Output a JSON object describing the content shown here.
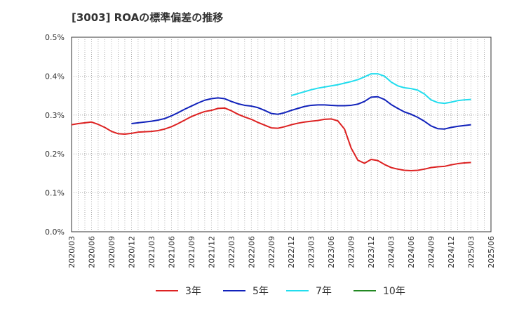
{
  "chart_data": {
    "type": "line",
    "title": "[3003]  ROAの標準偏差の推移",
    "xlabel": "",
    "ylabel": "",
    "ylim": [
      0,
      0.5
    ],
    "yticks": [
      "0.0%",
      "0.1%",
      "0.2%",
      "0.3%",
      "0.4%",
      "0.5%"
    ],
    "x_ticks": [
      "2020/03",
      "2020/06",
      "2020/09",
      "2020/12",
      "2021/03",
      "2021/06",
      "2021/09",
      "2021/12",
      "2022/03",
      "2022/06",
      "2022/09",
      "2022/12",
      "2023/03",
      "2023/06",
      "2023/09",
      "2023/12",
      "2024/03",
      "2024/06",
      "2024/09",
      "2024/12",
      "2025/03",
      "2025/06"
    ],
    "grid": true,
    "legend_position": "bottom",
    "series": [
      {
        "name": "3年",
        "color": "#dd2222",
        "values": [
          [
            "2020/03",
            0.275
          ],
          [
            "2020/04",
            0.278
          ],
          [
            "2020/05",
            0.28
          ],
          [
            "2020/06",
            0.282
          ],
          [
            "2020/07",
            0.276
          ],
          [
            "2020/08",
            0.268
          ],
          [
            "2020/09",
            0.258
          ],
          [
            "2020/10",
            0.252
          ],
          [
            "2020/11",
            0.251
          ],
          [
            "2020/12",
            0.253
          ],
          [
            "2021/01",
            0.256
          ],
          [
            "2021/02",
            0.257
          ],
          [
            "2021/03",
            0.258
          ],
          [
            "2021/04",
            0.26
          ],
          [
            "2021/05",
            0.264
          ],
          [
            "2021/06",
            0.27
          ],
          [
            "2021/07",
            0.278
          ],
          [
            "2021/08",
            0.287
          ],
          [
            "2021/09",
            0.296
          ],
          [
            "2021/10",
            0.303
          ],
          [
            "2021/11",
            0.309
          ],
          [
            "2021/12",
            0.312
          ],
          [
            "2022/01",
            0.317
          ],
          [
            "2022/02",
            0.318
          ],
          [
            "2022/03",
            0.311
          ],
          [
            "2022/04",
            0.302
          ],
          [
            "2022/05",
            0.295
          ],
          [
            "2022/06",
            0.289
          ],
          [
            "2022/07",
            0.281
          ],
          [
            "2022/08",
            0.274
          ],
          [
            "2022/09",
            0.267
          ],
          [
            "2022/10",
            0.266
          ],
          [
            "2022/11",
            0.27
          ],
          [
            "2022/12",
            0.275
          ],
          [
            "2023/01",
            0.279
          ],
          [
            "2023/02",
            0.282
          ],
          [
            "2023/03",
            0.284
          ],
          [
            "2023/04",
            0.286
          ],
          [
            "2023/05",
            0.289
          ],
          [
            "2023/06",
            0.29
          ],
          [
            "2023/07",
            0.285
          ],
          [
            "2023/08",
            0.264
          ],
          [
            "2023/09",
            0.215
          ],
          [
            "2023/10",
            0.184
          ],
          [
            "2023/11",
            0.176
          ],
          [
            "2023/12",
            0.186
          ],
          [
            "2024/01",
            0.183
          ],
          [
            "2024/02",
            0.173
          ],
          [
            "2024/03",
            0.165
          ],
          [
            "2024/04",
            0.161
          ],
          [
            "2024/05",
            0.158
          ],
          [
            "2024/06",
            0.157
          ],
          [
            "2024/07",
            0.158
          ],
          [
            "2024/08",
            0.161
          ],
          [
            "2024/09",
            0.165
          ],
          [
            "2024/10",
            0.167
          ],
          [
            "2024/11",
            0.168
          ],
          [
            "2024/12",
            0.172
          ],
          [
            "2025/01",
            0.175
          ],
          [
            "2025/02",
            0.177
          ],
          [
            "2025/03",
            0.178
          ]
        ]
      },
      {
        "name": "5年",
        "color": "#1122bb",
        "values": [
          [
            "2020/12",
            0.278
          ],
          [
            "2021/01",
            0.28
          ],
          [
            "2021/02",
            0.282
          ],
          [
            "2021/03",
            0.284
          ],
          [
            "2021/04",
            0.287
          ],
          [
            "2021/05",
            0.291
          ],
          [
            "2021/06",
            0.298
          ],
          [
            "2021/07",
            0.306
          ],
          [
            "2021/08",
            0.315
          ],
          [
            "2021/09",
            0.323
          ],
          [
            "2021/10",
            0.331
          ],
          [
            "2021/11",
            0.338
          ],
          [
            "2021/12",
            0.342
          ],
          [
            "2022/01",
            0.344
          ],
          [
            "2022/02",
            0.342
          ],
          [
            "2022/03",
            0.335
          ],
          [
            "2022/04",
            0.329
          ],
          [
            "2022/05",
            0.325
          ],
          [
            "2022/06",
            0.323
          ],
          [
            "2022/07",
            0.319
          ],
          [
            "2022/08",
            0.312
          ],
          [
            "2022/09",
            0.304
          ],
          [
            "2022/10",
            0.302
          ],
          [
            "2022/11",
            0.306
          ],
          [
            "2022/12",
            0.312
          ],
          [
            "2023/01",
            0.317
          ],
          [
            "2023/02",
            0.322
          ],
          [
            "2023/03",
            0.325
          ],
          [
            "2023/04",
            0.326
          ],
          [
            "2023/05",
            0.326
          ],
          [
            "2023/06",
            0.325
          ],
          [
            "2023/07",
            0.324
          ],
          [
            "2023/08",
            0.324
          ],
          [
            "2023/09",
            0.325
          ],
          [
            "2023/10",
            0.328
          ],
          [
            "2023/11",
            0.335
          ],
          [
            "2023/12",
            0.346
          ],
          [
            "2024/01",
            0.347
          ],
          [
            "2024/02",
            0.34
          ],
          [
            "2024/03",
            0.327
          ],
          [
            "2024/04",
            0.317
          ],
          [
            "2024/05",
            0.308
          ],
          [
            "2024/06",
            0.302
          ],
          [
            "2024/07",
            0.294
          ],
          [
            "2024/08",
            0.284
          ],
          [
            "2024/09",
            0.272
          ],
          [
            "2024/10",
            0.265
          ],
          [
            "2024/11",
            0.264
          ],
          [
            "2024/12",
            0.268
          ],
          [
            "2025/01",
            0.271
          ],
          [
            "2025/02",
            0.273
          ],
          [
            "2025/03",
            0.275
          ]
        ]
      },
      {
        "name": "7年",
        "color": "#22ddee",
        "values": [
          [
            "2022/12",
            0.35
          ],
          [
            "2023/01",
            0.355
          ],
          [
            "2023/02",
            0.36
          ],
          [
            "2023/03",
            0.365
          ],
          [
            "2023/04",
            0.369
          ],
          [
            "2023/05",
            0.372
          ],
          [
            "2023/06",
            0.375
          ],
          [
            "2023/07",
            0.378
          ],
          [
            "2023/08",
            0.382
          ],
          [
            "2023/09",
            0.386
          ],
          [
            "2023/10",
            0.391
          ],
          [
            "2023/11",
            0.398
          ],
          [
            "2023/12",
            0.406
          ],
          [
            "2024/01",
            0.406
          ],
          [
            "2024/02",
            0.4
          ],
          [
            "2024/03",
            0.385
          ],
          [
            "2024/04",
            0.375
          ],
          [
            "2024/05",
            0.37
          ],
          [
            "2024/06",
            0.368
          ],
          [
            "2024/07",
            0.364
          ],
          [
            "2024/08",
            0.354
          ],
          [
            "2024/09",
            0.339
          ],
          [
            "2024/10",
            0.332
          ],
          [
            "2024/11",
            0.33
          ],
          [
            "2024/12",
            0.333
          ],
          [
            "2025/01",
            0.337
          ],
          [
            "2025/02",
            0.339
          ],
          [
            "2025/03",
            0.34
          ]
        ]
      },
      {
        "name": "10年",
        "color": "#228822",
        "values": []
      }
    ]
  }
}
